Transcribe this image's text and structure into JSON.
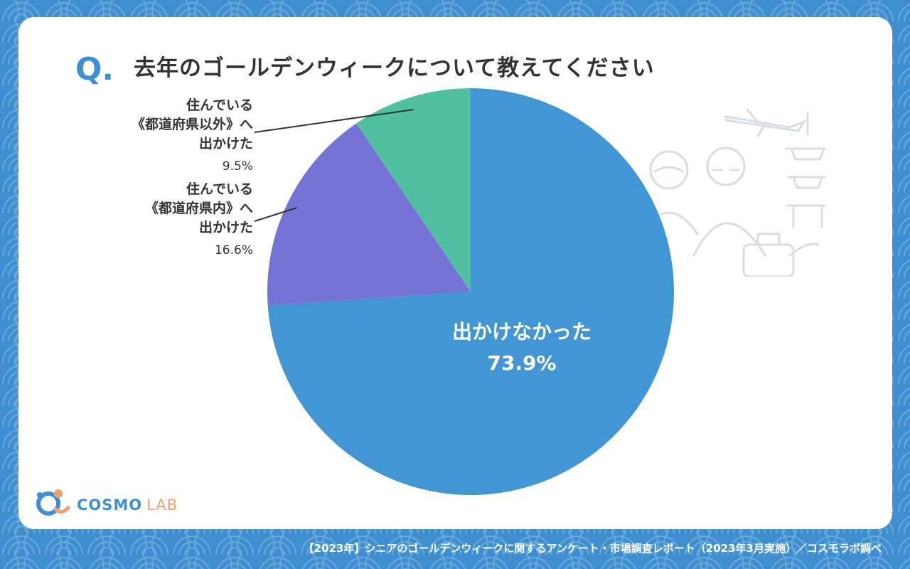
{
  "question": {
    "mark": "Q.",
    "text": "去年のゴールデンウィークについて教えてください"
  },
  "chart_data": {
    "type": "pie",
    "slices": [
      {
        "label_lines": [
          "出かけなかった"
        ],
        "value": 73.9,
        "value_label": "73.9%",
        "color": "#4196d3"
      },
      {
        "label_lines": [
          "住んでいる",
          "《都道府県内》へ",
          "出かけた"
        ],
        "value": 16.6,
        "value_label": "16.6%",
        "color": "#7474d6"
      },
      {
        "label_lines": [
          "住んでいる",
          "《都道府県以外》へ",
          "出かけた"
        ],
        "value": 9.5,
        "value_label": "9.5%",
        "color": "#50c0a0"
      }
    ]
  },
  "logo": {
    "name": "COSMO",
    "suffix": "LAB"
  },
  "footer": "【2023年】シニアのゴールデンウィークに関するアンケート・市場調査レポート（2023年3月実施）／コスモラボ調べ"
}
